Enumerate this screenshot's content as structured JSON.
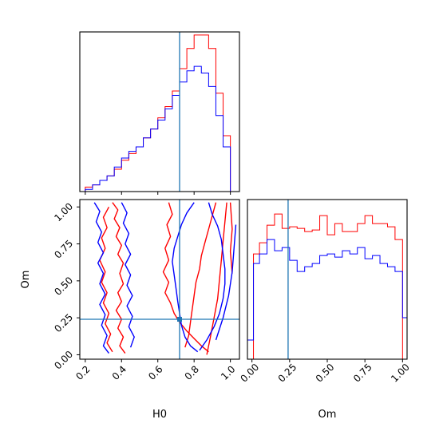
{
  "chart_data": [
    {
      "type": "histogram",
      "panel": "H0 marginal",
      "truth": 0.72,
      "xlim": [
        0.17,
        1.05
      ],
      "x_ticks": [
        0.2,
        0.4,
        0.6,
        0.8,
        1.0
      ],
      "x_tick_labels_shown": false,
      "bin_edges": [
        0.17,
        0.2,
        0.24,
        0.28,
        0.32,
        0.36,
        0.4,
        0.44,
        0.48,
        0.52,
        0.56,
        0.6,
        0.64,
        0.68,
        0.72,
        0.76,
        0.8,
        0.84,
        0.88,
        0.92,
        0.96,
        1.0,
        1.05
      ],
      "series": [
        {
          "color": "#ff0000",
          "values": [
            0,
            2,
            3,
            5,
            7,
            10,
            14,
            17,
            20,
            24,
            28,
            33,
            38,
            45,
            55,
            64,
            70,
            70,
            64,
            44,
            25,
            0
          ]
        },
        {
          "color": "#0000ff",
          "values": [
            0,
            1,
            3,
            5,
            7,
            11,
            15,
            18,
            20,
            24,
            28,
            32,
            37,
            43,
            49,
            54,
            56,
            53,
            47,
            34,
            20,
            0
          ]
        }
      ]
    },
    {
      "type": "contour",
      "panel": "Om vs H0",
      "xlabel": "H0",
      "ylabel": "Om",
      "xlim": [
        0.17,
        1.05
      ],
      "ylim": [
        -0.03,
        1.05
      ],
      "x_ticks": [
        0.2,
        0.4,
        0.6,
        0.8,
        1.0
      ],
      "x_tick_labels": [
        "0.2",
        "0.4",
        "0.6",
        "0.8",
        "1.0"
      ],
      "y_ticks": [
        0.0,
        0.25,
        0.5,
        0.75,
        1.0
      ],
      "y_tick_labels": [
        "0.00",
        "0.25",
        "0.50",
        "0.75",
        "1.00"
      ],
      "truth": {
        "x": 0.72,
        "y": 0.24
      },
      "series": [
        {
          "color": "#ff0000",
          "contours": [
            [
              [
                0.35,
                1.03
              ],
              [
                0.38,
                0.98
              ],
              [
                0.36,
                0.92
              ],
              [
                0.39,
                0.86
              ],
              [
                0.37,
                0.8
              ],
              [
                0.4,
                0.74
              ],
              [
                0.38,
                0.68
              ],
              [
                0.41,
                0.62
              ],
              [
                0.39,
                0.55
              ],
              [
                0.41,
                0.48
              ],
              [
                0.38,
                0.42
              ],
              [
                0.4,
                0.36
              ],
              [
                0.37,
                0.3
              ],
              [
                0.4,
                0.24
              ],
              [
                0.38,
                0.18
              ],
              [
                0.41,
                0.12
              ],
              [
                0.39,
                0.06
              ],
              [
                0.42,
                0.01
              ]
            ],
            [
              [
                0.33,
                1.0
              ],
              [
                0.3,
                0.93
              ],
              [
                0.32,
                0.86
              ],
              [
                0.29,
                0.79
              ],
              [
                0.31,
                0.72
              ],
              [
                0.28,
                0.64
              ],
              [
                0.31,
                0.56
              ],
              [
                0.29,
                0.49
              ],
              [
                0.32,
                0.42
              ],
              [
                0.3,
                0.35
              ],
              [
                0.33,
                0.28
              ],
              [
                0.31,
                0.21
              ],
              [
                0.34,
                0.14
              ],
              [
                0.32,
                0.08
              ],
              [
                0.35,
                0.02
              ]
            ],
            [
              [
                0.66,
                1.03
              ],
              [
                0.68,
                0.95
              ],
              [
                0.65,
                0.88
              ],
              [
                0.67,
                0.8
              ],
              [
                0.64,
                0.72
              ],
              [
                0.66,
                0.64
              ],
              [
                0.63,
                0.56
              ],
              [
                0.66,
                0.49
              ],
              [
                0.64,
                0.42
              ],
              [
                0.67,
                0.35
              ],
              [
                0.69,
                0.28
              ],
              [
                0.72,
                0.22
              ],
              [
                0.76,
                0.16
              ],
              [
                0.8,
                0.11
              ],
              [
                0.84,
                0.06
              ],
              [
                0.88,
                0.02
              ]
            ],
            [
              [
                0.92,
                1.03
              ],
              [
                0.9,
                0.94
              ],
              [
                0.88,
                0.85
              ],
              [
                0.86,
                0.76
              ],
              [
                0.84,
                0.67
              ],
              [
                0.83,
                0.58
              ],
              [
                0.81,
                0.49
              ],
              [
                0.8,
                0.4
              ],
              [
                0.79,
                0.31
              ],
              [
                0.78,
                0.22
              ],
              [
                0.77,
                0.13
              ],
              [
                0.75,
                0.05
              ]
            ],
            [
              [
                0.98,
                1.03
              ],
              [
                0.97,
                0.9
              ],
              [
                0.96,
                0.77
              ],
              [
                0.95,
                0.64
              ],
              [
                0.94,
                0.51
              ],
              [
                0.93,
                0.38
              ],
              [
                0.91,
                0.25
              ],
              [
                0.89,
                0.12
              ],
              [
                0.87,
                0.0
              ]
            ],
            [
              [
                1.0,
                1.03
              ],
              [
                1.01,
                0.85
              ],
              [
                1.0,
                0.7
              ],
              [
                1.01,
                0.55
              ]
            ]
          ]
        },
        {
          "color": "#0000ff",
          "contours": [
            [
              [
                0.25,
                1.03
              ],
              [
                0.28,
                0.97
              ],
              [
                0.26,
                0.9
              ],
              [
                0.29,
                0.83
              ],
              [
                0.27,
                0.76
              ],
              [
                0.3,
                0.69
              ],
              [
                0.27,
                0.62
              ],
              [
                0.3,
                0.55
              ],
              [
                0.28,
                0.48
              ],
              [
                0.31,
                0.41
              ],
              [
                0.28,
                0.34
              ],
              [
                0.31,
                0.27
              ],
              [
                0.29,
                0.2
              ],
              [
                0.32,
                0.13
              ],
              [
                0.3,
                0.06
              ],
              [
                0.33,
                0.01
              ]
            ],
            [
              [
                0.4,
                1.03
              ],
              [
                0.43,
                0.96
              ],
              [
                0.41,
                0.89
              ],
              [
                0.44,
                0.82
              ],
              [
                0.42,
                0.75
              ],
              [
                0.45,
                0.68
              ],
              [
                0.42,
                0.61
              ],
              [
                0.45,
                0.54
              ],
              [
                0.43,
                0.47
              ],
              [
                0.46,
                0.4
              ],
              [
                0.43,
                0.33
              ],
              [
                0.46,
                0.26
              ],
              [
                0.44,
                0.19
              ],
              [
                0.47,
                0.12
              ],
              [
                0.45,
                0.05
              ]
            ],
            [
              [
                0.8,
                1.03
              ],
              [
                0.76,
                0.96
              ],
              [
                0.73,
                0.88
              ],
              [
                0.71,
                0.8
              ],
              [
                0.69,
                0.72
              ],
              [
                0.68,
                0.63
              ],
              [
                0.69,
                0.54
              ],
              [
                0.7,
                0.45
              ],
              [
                0.71,
                0.36
              ],
              [
                0.72,
                0.28
              ],
              [
                0.73,
                0.2
              ],
              [
                0.75,
                0.12
              ],
              [
                0.78,
                0.06
              ],
              [
                0.82,
                0.02
              ]
            ],
            [
              [
                0.88,
                1.03
              ],
              [
                0.9,
                0.95
              ],
              [
                0.93,
                0.87
              ],
              [
                0.95,
                0.78
              ],
              [
                0.96,
                0.68
              ],
              [
                0.97,
                0.58
              ],
              [
                0.97,
                0.48
              ],
              [
                0.96,
                0.38
              ],
              [
                0.94,
                0.28
              ],
              [
                0.91,
                0.19
              ],
              [
                0.87,
                0.1
              ],
              [
                0.83,
                0.03
              ]
            ],
            [
              [
                1.03,
                0.88
              ],
              [
                1.02,
                0.72
              ],
              [
                1.01,
                0.56
              ],
              [
                0.99,
                0.4
              ],
              [
                0.96,
                0.25
              ],
              [
                0.92,
                0.1
              ]
            ]
          ]
        }
      ]
    },
    {
      "type": "histogram",
      "panel": "Om marginal",
      "xlabel": "Om",
      "truth": 0.24,
      "xlim": [
        -0.03,
        1.03
      ],
      "x_ticks": [
        0.0,
        0.25,
        0.5,
        0.75,
        1.0
      ],
      "x_tick_labels": [
        "0.00",
        "0.25",
        "0.50",
        "0.75",
        "1.00"
      ],
      "bin_edges": [
        -0.03,
        0.01,
        0.05,
        0.1,
        0.15,
        0.2,
        0.25,
        0.3,
        0.35,
        0.4,
        0.45,
        0.5,
        0.55,
        0.6,
        0.65,
        0.7,
        0.75,
        0.8,
        0.85,
        0.9,
        0.95,
        1.0,
        1.03
      ],
      "series": [
        {
          "color": "#ff0000",
          "values": [
            0,
            66,
            73,
            84,
            91,
            82,
            83,
            82,
            80,
            81,
            90,
            78,
            85,
            80,
            80,
            85,
            90,
            85,
            85,
            83,
            75,
            0
          ]
        },
        {
          "color": "#0000ff",
          "values": [
            12,
            60,
            66,
            75,
            68,
            70,
            62,
            55,
            58,
            60,
            65,
            66,
            64,
            68,
            66,
            70,
            63,
            65,
            60,
            58,
            55,
            26
          ]
        }
      ]
    }
  ]
}
